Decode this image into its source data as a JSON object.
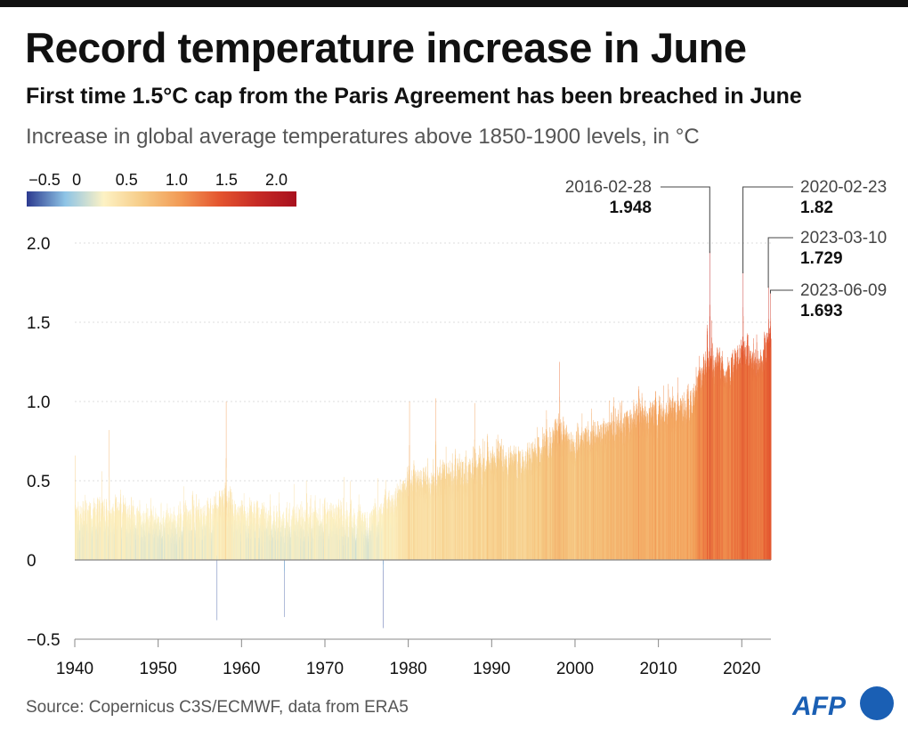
{
  "header": {
    "title": "Record temperature increase in June",
    "subtitle": "First time 1.5°C  cap from the Paris Agreement has been breached in June",
    "description": "Increase in global average temperatures above 1850-1900 levels, in °C"
  },
  "footer": {
    "source": "Source: Copernicus C3S/ECMWF, data from ERA5",
    "logo_text": "AFP"
  },
  "colors": {
    "scale_stops": [
      "#2c3a8f",
      "#8ec4e6",
      "#fdf2c4",
      "#f6cb86",
      "#f29a55",
      "#e4552f",
      "#c62a25",
      "#a8101e"
    ],
    "axis": "#888888",
    "grid": "#dddddd",
    "logo": "#1a5fb4"
  },
  "chart_data": {
    "type": "bar",
    "title": "",
    "xlabel": "",
    "ylabel": "",
    "x_range": [
      "1940-01-01",
      "2023-06-30"
    ],
    "ylim": [
      -0.5,
      2.0
    ],
    "yticks": [
      -0.5,
      0,
      0.5,
      1.0,
      1.5,
      2.0
    ],
    "ytick_labels": [
      "−0.5",
      "0",
      "0.5",
      "1.0",
      "1.5",
      "2.0"
    ],
    "xticks": [
      1940,
      1950,
      1960,
      1970,
      1980,
      1990,
      2000,
      2010,
      2020
    ],
    "xtick_labels": [
      "1940",
      "1950",
      "1960",
      "1970",
      "1980",
      "1990",
      "2000",
      "2010",
      "2020"
    ],
    "grid": true,
    "legend": {
      "type": "color-scale",
      "placement": "top-left",
      "ticks": [
        -0.5,
        0,
        0.5,
        1.0,
        1.5,
        2.0
      ],
      "tick_labels": [
        "−0.5",
        "0",
        "0.5",
        "1.0",
        "1.5",
        "2.0"
      ],
      "range": [
        -0.5,
        2.2
      ]
    },
    "trend_by_year": [
      [
        1940,
        0.25
      ],
      [
        1945,
        0.28
      ],
      [
        1950,
        0.2
      ],
      [
        1955,
        0.22
      ],
      [
        1958,
        0.32
      ],
      [
        1960,
        0.25
      ],
      [
        1965,
        0.2
      ],
      [
        1970,
        0.25
      ],
      [
        1975,
        0.2
      ],
      [
        1977,
        0.28
      ],
      [
        1980,
        0.45
      ],
      [
        1985,
        0.5
      ],
      [
        1990,
        0.58
      ],
      [
        1995,
        0.62
      ],
      [
        1998,
        0.78
      ],
      [
        2000,
        0.7
      ],
      [
        2005,
        0.82
      ],
      [
        2010,
        0.88
      ],
      [
        2014,
        0.95
      ],
      [
        2016,
        1.28
      ],
      [
        2018,
        1.15
      ],
      [
        2020,
        1.3
      ],
      [
        2022,
        1.2
      ],
      [
        2023.5,
        1.4
      ]
    ],
    "highlights": [
      {
        "date": "2016-02-28",
        "value": 1.948,
        "value_label": "1.948"
      },
      {
        "date": "2020-02-23",
        "value": 1.82,
        "value_label": "1.82"
      },
      {
        "date": "2023-03-10",
        "value": 1.729,
        "value_label": "1.729"
      },
      {
        "date": "2023-06-09",
        "value": 1.693,
        "value_label": "1.693"
      }
    ],
    "notable_lows": [
      {
        "date": "1957-01-15",
        "value": -0.38
      },
      {
        "date": "1965-02-10",
        "value": -0.36
      },
      {
        "date": "1976-12-20",
        "value": -0.43
      }
    ],
    "notable_highs": [
      {
        "date": "1944-02-15",
        "value": 0.82
      },
      {
        "date": "1958-02-20",
        "value": 1.0
      },
      {
        "date": "1980-02-15",
        "value": 1.0
      },
      {
        "date": "1983-04-10",
        "value": 1.02
      },
      {
        "date": "1987-12-10",
        "value": 0.99
      },
      {
        "date": "1998-02-20",
        "value": 1.25
      },
      {
        "date": "2016-02-28",
        "value": 1.948
      },
      {
        "date": "2020-02-23",
        "value": 1.82
      },
      {
        "date": "2023-03-10",
        "value": 1.729
      },
      {
        "date": "2023-06-09",
        "value": 1.693
      }
    ]
  }
}
